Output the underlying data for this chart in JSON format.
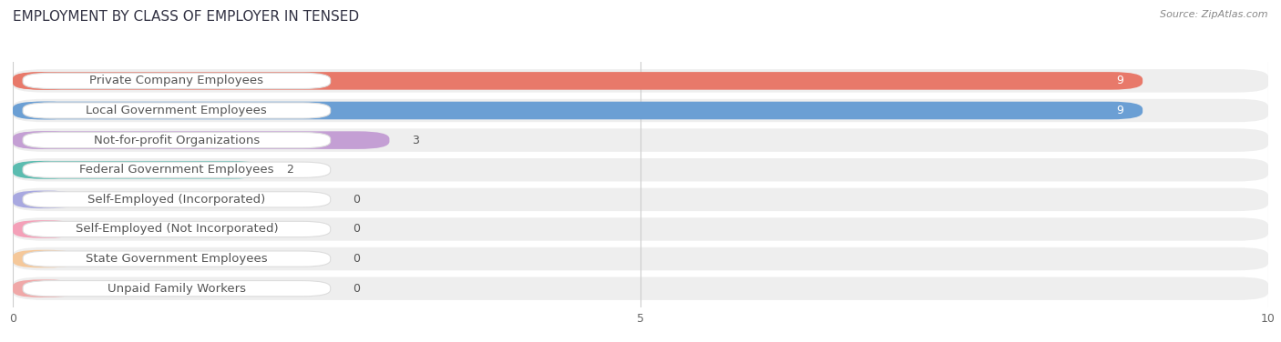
{
  "title": "Employment by Class of Employer in Tensed",
  "title_display": "EMPLOYMENT BY CLASS OF EMPLOYER IN TENSED",
  "source": "Source: ZipAtlas.com",
  "categories": [
    "Private Company Employees",
    "Local Government Employees",
    "Not-for-profit Organizations",
    "Federal Government Employees",
    "Self-Employed (Incorporated)",
    "Self-Employed (Not Incorporated)",
    "State Government Employees",
    "Unpaid Family Workers"
  ],
  "values": [
    9,
    9,
    3,
    2,
    0,
    0,
    0,
    0
  ],
  "bar_colors": [
    "#e8796a",
    "#6b9fd4",
    "#c49fd4",
    "#5bbcb0",
    "#a8a8e0",
    "#f4a0b8",
    "#f5c89a",
    "#f0a8a8"
  ],
  "row_bg_color": "#eeeeee",
  "xlim": [
    0,
    10
  ],
  "xticks": [
    0,
    5,
    10
  ],
  "label_fontsize": 9.5,
  "title_fontsize": 11,
  "value_fontsize": 9.0,
  "background_color": "#ffffff",
  "grid_color": "#cccccc",
  "label_text_color": "#555555",
  "value_color_inside": "#ffffff",
  "value_color_outside": "#555555"
}
